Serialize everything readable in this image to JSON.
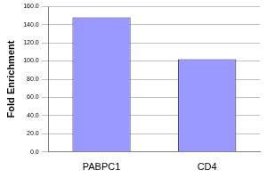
{
  "chart_data": {
    "type": "bar",
    "y_label": "Fold Enrichment",
    "categories": [
      "PABPC1",
      "CD4"
    ],
    "values": [
      148,
      102
    ],
    "color": "#9999ff",
    "ylim": [
      0,
      160
    ],
    "yticks": [
      {
        "value": 0,
        "label": "0.0"
      },
      {
        "value": 20,
        "label": "20.0"
      },
      {
        "value": 40,
        "label": "40.0"
      },
      {
        "value": 60,
        "label": "60.0"
      },
      {
        "value": 80,
        "label": "80.0"
      },
      {
        "value": 100,
        "label": "100.0"
      },
      {
        "value": 120,
        "label": "120.0"
      },
      {
        "value": 140,
        "label": "140.0"
      },
      {
        "value": 160,
        "label": "160.0"
      }
    ],
    "grid": true
  }
}
